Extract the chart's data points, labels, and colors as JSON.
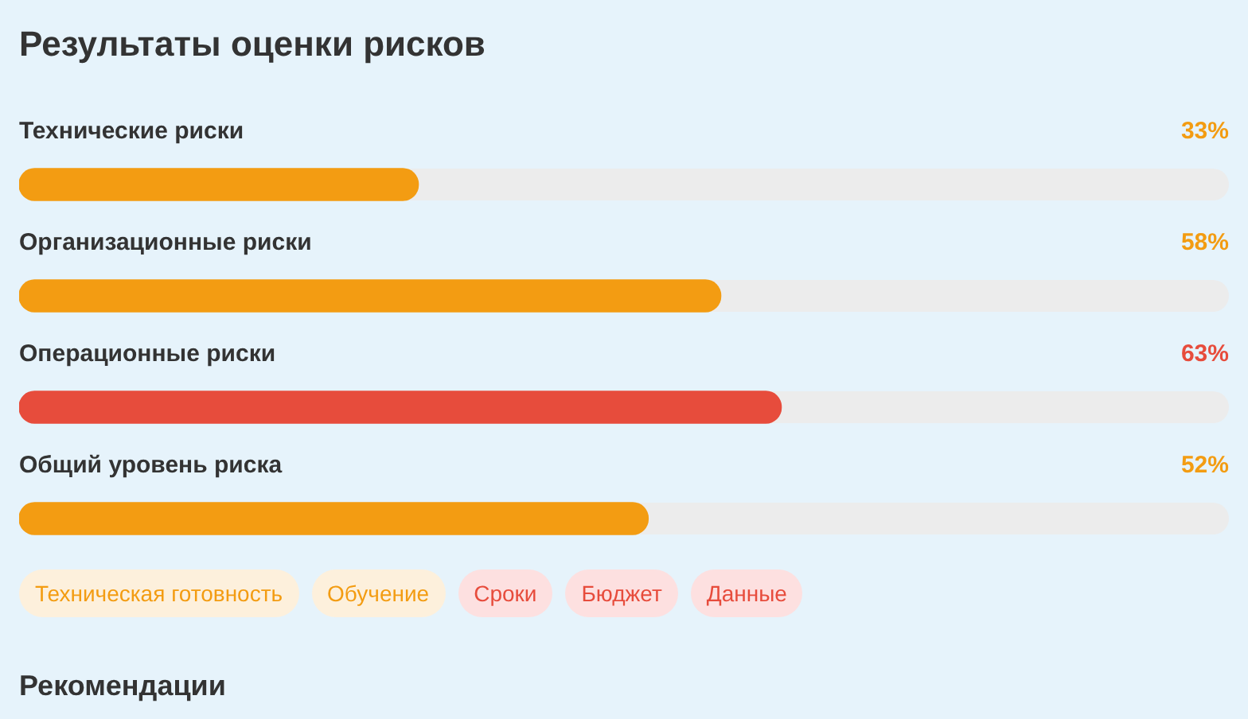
{
  "chart_data": {
    "type": "bar",
    "orientation": "horizontal",
    "title": "Результаты оценки рисков",
    "subtitle": "Рекомендации",
    "categories": [
      "Технические риски",
      "Организационные риски",
      "Операционные риски",
      "Общий уровень риска"
    ],
    "values": [
      33,
      58,
      63,
      52
    ],
    "colors": [
      "#f39c12",
      "#f39c12",
      "#e74c3c",
      "#f39c12"
    ],
    "value_labels": [
      "33%",
      "58%",
      "63%",
      "52%"
    ],
    "xlim": [
      0,
      100
    ],
    "legend": false,
    "annotations": [
      "Техническая готовность",
      "Обучение",
      "Сроки",
      "Бюджет",
      "Данные"
    ]
  }
}
